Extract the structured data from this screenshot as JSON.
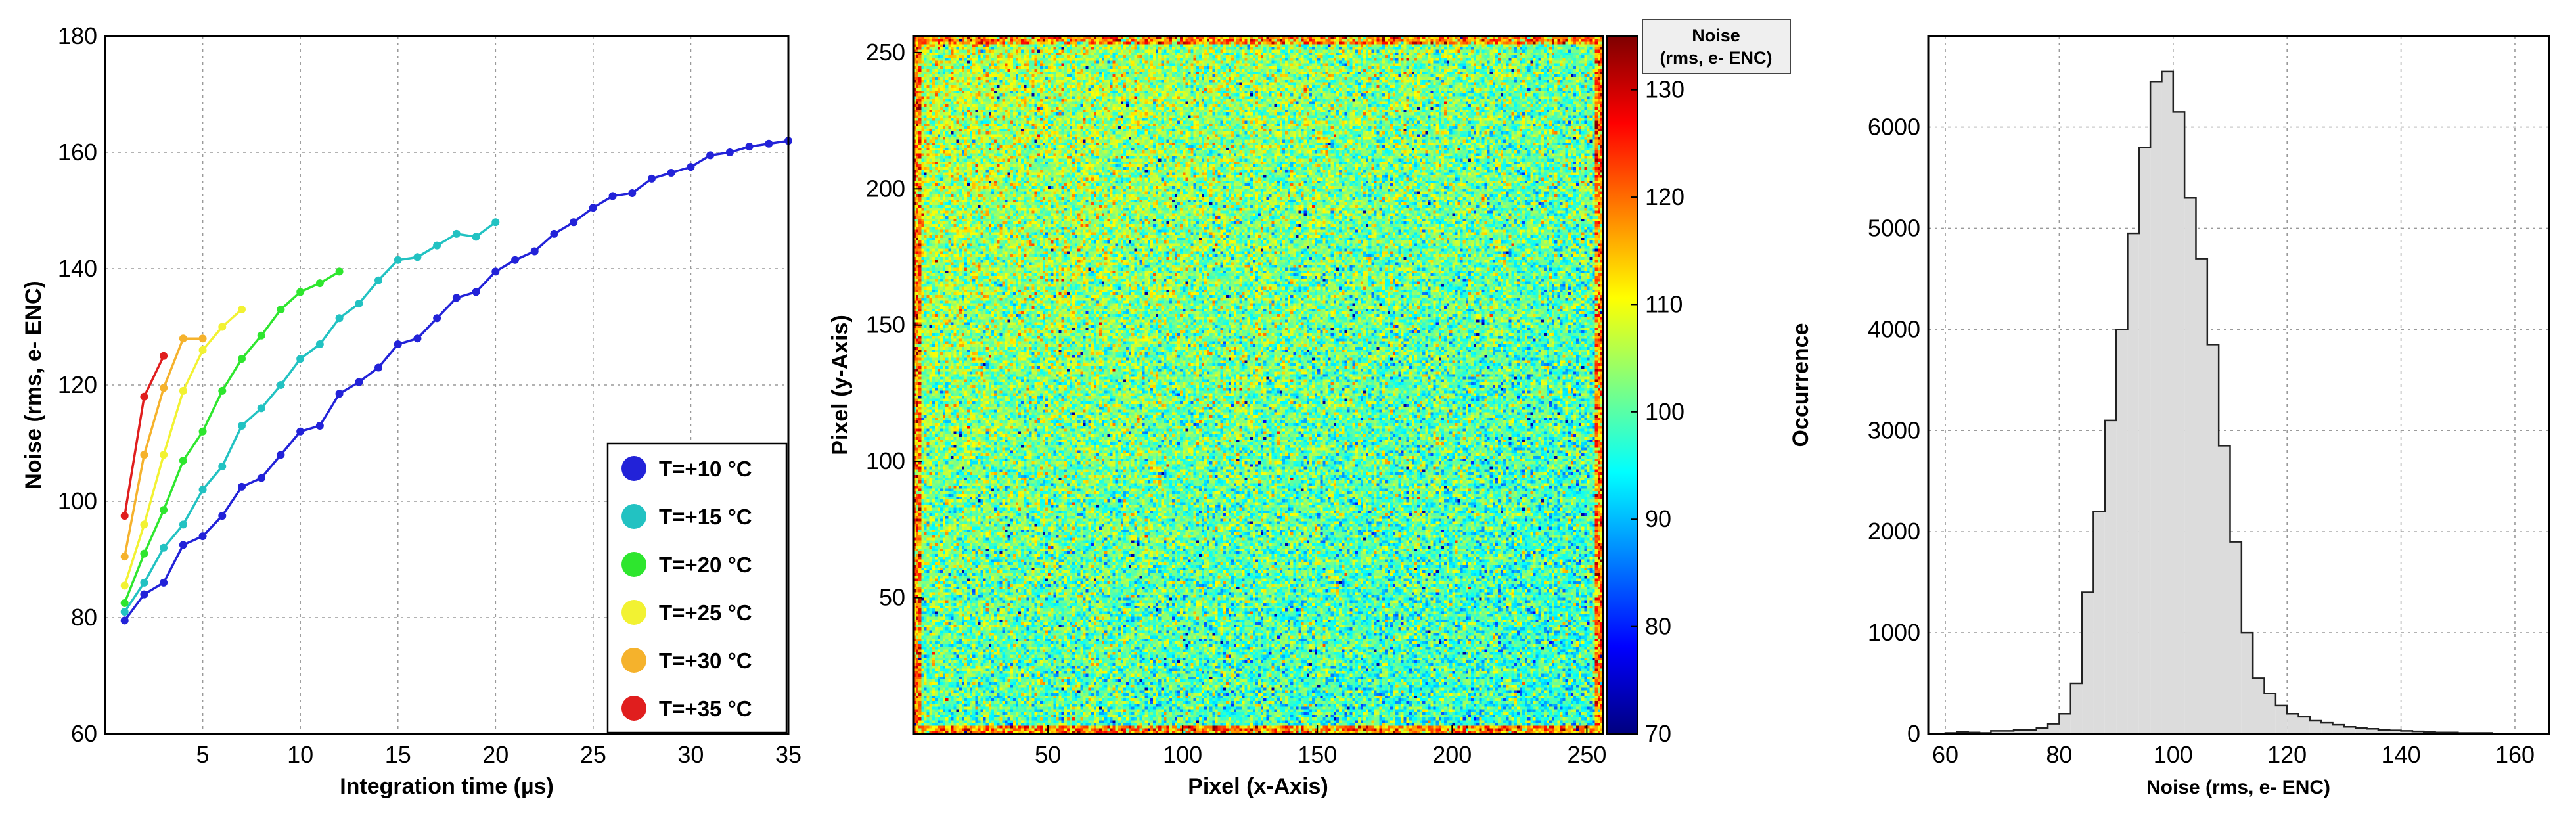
{
  "colors": {
    "t10": "#2222d8",
    "t15": "#22c2c2",
    "t20": "#2ee62e",
    "t25": "#f2f232",
    "t30": "#f5b22c",
    "t35": "#e01e1e",
    "hist_fill": "#dcdcdc",
    "hist_edge": "#222222"
  },
  "chart_data": [
    {
      "type": "line",
      "xlabel": "Integration time (µs)",
      "ylabel": "Noise (rms, e- ENC)",
      "xlim": [
        0,
        35
      ],
      "ylim": [
        60,
        180
      ],
      "xticks": [
        5,
        10,
        15,
        20,
        25,
        30,
        35
      ],
      "yticks": [
        60,
        80,
        100,
        120,
        140,
        160,
        180
      ],
      "grid": true,
      "legend_position": "bottom-right",
      "series": [
        {
          "name": "T=+10 °C",
          "color_key": "t10",
          "x": [
            1,
            2,
            3,
            4,
            5,
            6,
            7,
            8,
            9,
            10,
            11,
            12,
            13,
            14,
            15,
            16,
            17,
            18,
            19,
            20,
            21,
            22,
            23,
            24,
            25,
            26,
            27,
            28,
            29,
            30,
            31,
            32,
            33,
            34,
            35
          ],
          "y": [
            79.5,
            84,
            86,
            92.5,
            94,
            97.5,
            102.5,
            104,
            108,
            112,
            113,
            118.5,
            120.5,
            123,
            127,
            128,
            131.5,
            135,
            136,
            139.5,
            141.5,
            143,
            146,
            148,
            150.5,
            152.5,
            153,
            155.5,
            156.5,
            157.5,
            159.5,
            160,
            161,
            161.5,
            162
          ]
        },
        {
          "name": "T=+15 °C",
          "color_key": "t15",
          "x": [
            1,
            2,
            3,
            4,
            5,
            6,
            7,
            8,
            9,
            10,
            11,
            12,
            13,
            14,
            15,
            16,
            17,
            18,
            19,
            20
          ],
          "y": [
            81,
            86,
            92,
            96,
            102,
            106,
            113,
            116,
            120,
            124.5,
            127,
            131.5,
            134,
            138,
            141.5,
            142,
            144,
            146,
            145.5,
            148
          ]
        },
        {
          "name": "T=+20 °C",
          "color_key": "t20",
          "x": [
            1,
            2,
            3,
            4,
            5,
            6,
            7,
            8,
            9,
            10,
            11,
            12
          ],
          "y": [
            82.5,
            91,
            98.5,
            107,
            112,
            119,
            124.5,
            128.5,
            133,
            136,
            137.5,
            139.5
          ]
        },
        {
          "name": "T=+25 °C",
          "color_key": "t25",
          "x": [
            1,
            2,
            3,
            4,
            5,
            6,
            7
          ],
          "y": [
            85.5,
            96,
            108,
            119,
            126,
            130,
            133
          ]
        },
        {
          "name": "T=+30 °C",
          "color_key": "t30",
          "x": [
            1,
            2,
            3,
            4,
            5
          ],
          "y": [
            90.5,
            108,
            119.5,
            128,
            128
          ]
        },
        {
          "name": "T=+35 °C",
          "color_key": "t35",
          "x": [
            1,
            2,
            3
          ],
          "y": [
            97.5,
            118,
            125
          ]
        }
      ]
    },
    {
      "type": "heatmap",
      "xlabel": "Pixel (x-Axis)",
      "ylabel": "Pixel (y-Axis)",
      "xlim": [
        0,
        256
      ],
      "ylim": [
        0,
        256
      ],
      "xticks": [
        50,
        100,
        150,
        200,
        250
      ],
      "yticks": [
        50,
        100,
        150,
        200,
        250
      ],
      "grid_size": 256,
      "colorbar": {
        "title": [
          "Noise",
          "(rms, e- ENC)"
        ],
        "range": [
          70,
          135
        ],
        "ticks": [
          70,
          80,
          90,
          100,
          110,
          120,
          130
        ]
      },
      "mean_value": 100,
      "edge_value": 118
    },
    {
      "type": "bar",
      "xlabel": "Noise (rms, e- ENC)",
      "ylabel": "Occurrence",
      "xlim": [
        57,
        166
      ],
      "ylim": [
        0,
        6900
      ],
      "xticks": [
        60,
        80,
        100,
        120,
        140,
        160
      ],
      "yticks": [
        0,
        1000,
        2000,
        3000,
        4000,
        5000,
        6000
      ],
      "grid": true,
      "bin_width": 2,
      "bin_start": [
        60,
        62,
        64,
        66,
        68,
        70,
        72,
        74,
        76,
        78,
        80,
        82,
        84,
        86,
        88,
        90,
        92,
        94,
        96,
        98,
        100,
        102,
        104,
        106,
        108,
        110,
        112,
        114,
        116,
        118,
        120,
        122,
        124,
        126,
        128,
        130,
        132,
        134,
        136,
        138,
        140,
        142,
        144,
        146,
        148,
        150,
        152,
        154,
        156,
        158,
        160,
        162
      ],
      "values": [
        10,
        20,
        15,
        10,
        30,
        30,
        40,
        40,
        60,
        100,
        200,
        500,
        1400,
        2200,
        3100,
        4000,
        4950,
        5800,
        6450,
        6550,
        6150,
        5300,
        4700,
        3850,
        2850,
        1900,
        1000,
        550,
        400,
        280,
        200,
        170,
        130,
        110,
        90,
        70,
        60,
        50,
        40,
        35,
        30,
        25,
        20,
        15,
        15,
        10,
        10,
        10,
        5,
        5,
        5,
        5
      ]
    }
  ]
}
